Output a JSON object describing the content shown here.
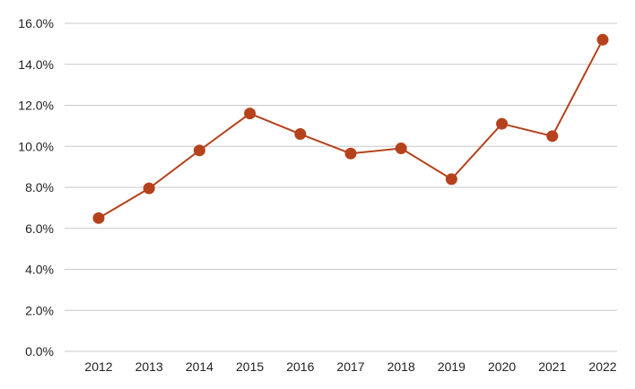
{
  "chart_data": {
    "type": "line",
    "title": "",
    "xlabel": "",
    "ylabel": "",
    "categories": [
      "2012",
      "2013",
      "2014",
      "2015",
      "2016",
      "2017",
      "2018",
      "2019",
      "2020",
      "2021",
      "2022"
    ],
    "series": [
      {
        "values": [
          6.5,
          7.95,
          9.8,
          11.6,
          10.6,
          9.65,
          9.9,
          8.4,
          11.1,
          10.5,
          15.2
        ],
        "color": "#b5421c"
      }
    ],
    "ylim": [
      0,
      16
    ],
    "y_ticks": [
      0,
      2,
      4,
      6,
      8,
      10,
      12,
      14,
      16
    ],
    "y_tick_labels": [
      "0.0%",
      "2.0%",
      "4.0%",
      "6.0%",
      "8.0%",
      "10.0%",
      "12.0%",
      "14.0%",
      "16.0%"
    ],
    "grid": true,
    "grid_color": "#c8c8c8",
    "legend": "none"
  }
}
